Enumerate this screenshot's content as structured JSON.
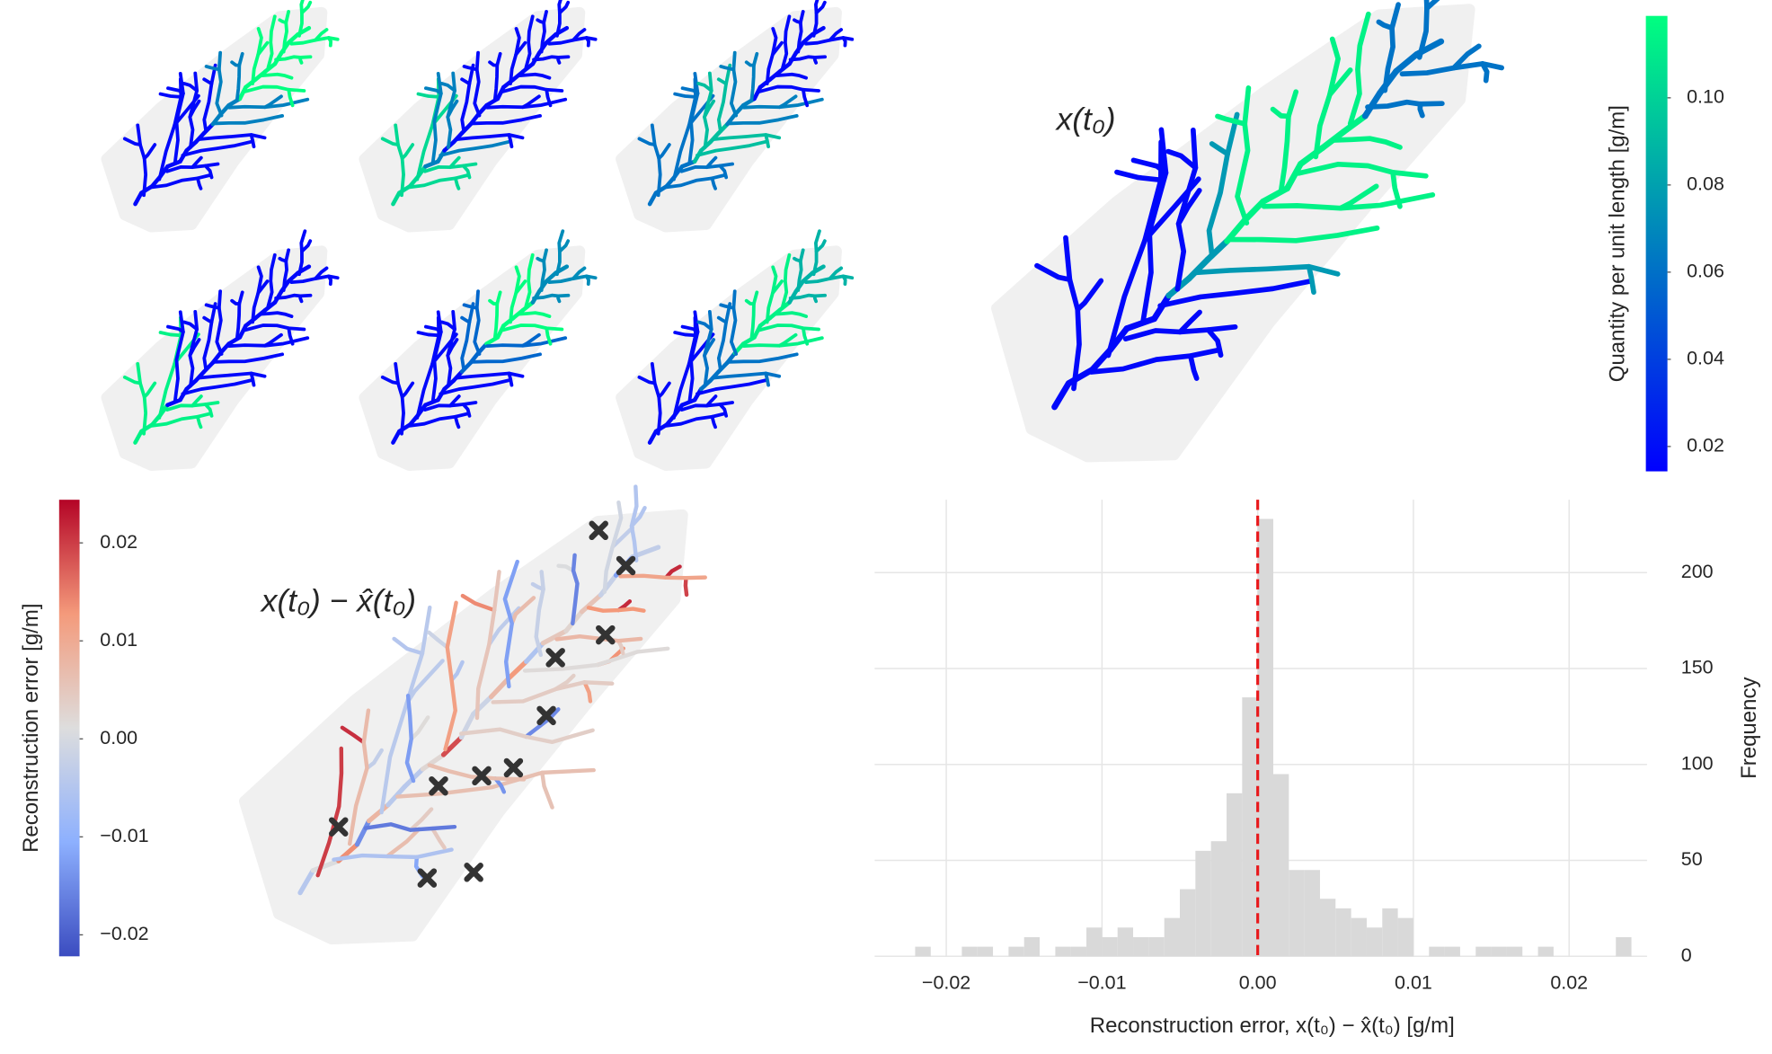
{
  "chart_data": [
    {
      "type": "colorbar",
      "label": "Quantity per unit length [g/m]",
      "colors": [
        "#0000ff",
        "#0080bf",
        "#00ff80"
      ],
      "ylim": [
        0.0143,
        0.1188
      ],
      "yticks": [
        0.02,
        0.04,
        0.06,
        0.08,
        {
          "value": 0.1,
          "label": "0.10"
        }
      ]
    },
    {
      "type": "map",
      "annotation": "x(t₀)"
    },
    {
      "type": "colorbar",
      "label": "Reconstruction error [g/m]",
      "colors": [
        "#3b4cc0",
        "#8db0fe",
        "#dddddd",
        "#f49a7b",
        "#b40426"
      ],
      "ylim": [
        -0.0222,
        0.0244
      ],
      "yticks": [
        {
          "value": -0.02,
          "label": "−0.02"
        },
        {
          "value": -0.01,
          "label": "−0.01"
        },
        {
          "value": 0,
          "label": "0.00"
        },
        0.01,
        0.02
      ]
    },
    {
      "type": "map",
      "annotation": "x(t₀) − x̂(t₀)"
    },
    {
      "type": "histogram",
      "xlabel": "Reconstruction error, x(t₀) − x̂(t₀) [g/m]",
      "ylabel": "Frequency",
      "color": "#d9d9d9",
      "bins": [
        -0.022,
        -0.021,
        -0.02,
        -0.019,
        -0.018,
        -0.017,
        -0.016,
        -0.015,
        -0.014,
        -0.013,
        -0.012,
        -0.011,
        -0.01,
        -0.009,
        -0.008,
        -0.007,
        -0.006,
        -0.005,
        -0.004,
        -0.003,
        -0.002,
        -0.001,
        0,
        0.001,
        0.002,
        0.003,
        0.004,
        0.005,
        0.006,
        0.007,
        0.008,
        0.009,
        0.01,
        0.011,
        0.012,
        0.013,
        0.014,
        0.015,
        0.016,
        0.017,
        0.018,
        0.019,
        0.02,
        0.021,
        0.022,
        0.023,
        0.024
      ],
      "counts": [
        5,
        0,
        0,
        5,
        5,
        0,
        5,
        10,
        0,
        5,
        5,
        15,
        10,
        15,
        10,
        10,
        20,
        35,
        55,
        60,
        85,
        135,
        228,
        95,
        45,
        45,
        30,
        25,
        20,
        15,
        25,
        20,
        0,
        5,
        5,
        0,
        5,
        5,
        5,
        0,
        5,
        0,
        0,
        0,
        0,
        10
      ],
      "xlim": [
        -0.0246,
        0.025
      ],
      "ylim": [
        0,
        238
      ],
      "xticks": [
        {
          "value": -0.02,
          "label": "−0.02"
        },
        {
          "value": -0.01,
          "label": "−0.01"
        },
        {
          "value": 0,
          "label": "0.00"
        },
        0.01,
        0.02
      ],
      "yticks": [
        0,
        50,
        100,
        150,
        200
      ],
      "grid": true,
      "vline": 0,
      "vline_color": "#e8191c"
    }
  ]
}
